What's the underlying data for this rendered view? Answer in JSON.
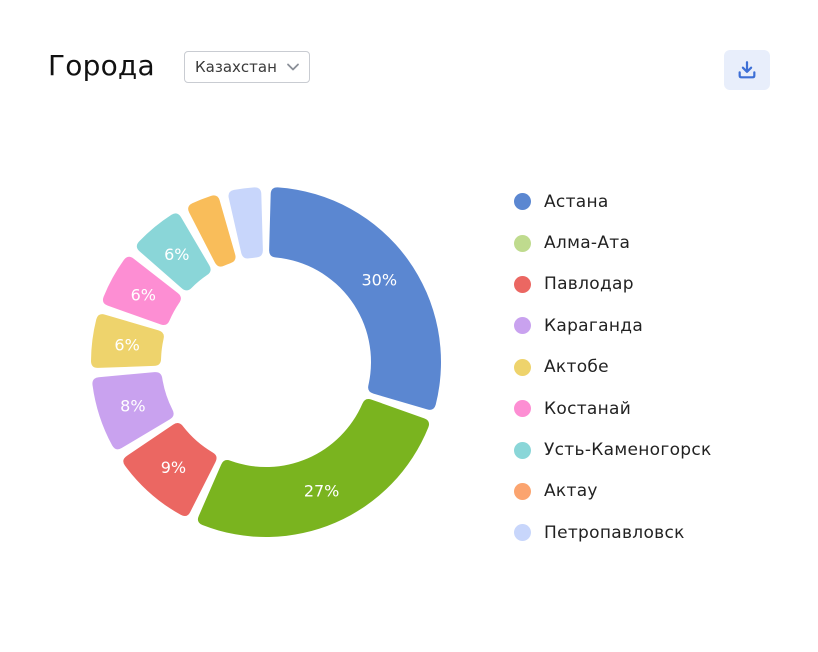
{
  "header": {
    "title": "Города",
    "country_select": {
      "value": "Казахстан"
    },
    "download_icon": "download-icon"
  },
  "chart_data": {
    "type": "pie",
    "variant": "donut",
    "title": "",
    "legend_position": "right",
    "categories": [
      "Астана",
      "Алма-Ата",
      "Павлодар",
      "Караганда",
      "Актобе",
      "Костанай",
      "Усть-Каменогорск",
      "Актау",
      "Петропавловск"
    ],
    "values": [
      30,
      27,
      9,
      8,
      6,
      6,
      6,
      4,
      4
    ],
    "labels": [
      "30%",
      "27%",
      "9%",
      "8%",
      "6%",
      "6%",
      "6%",
      "",
      ""
    ],
    "colors": [
      "#5b87d1",
      "#7ab41f",
      "#eb6762",
      "#c9a2ef",
      "#eed36c",
      "#fd8ed3",
      "#8ad6d8",
      "#f9bd5a",
      "#c8d6fb"
    ],
    "legend_colors": [
      "#5b87d1",
      "#bfdb8e",
      "#eb6762",
      "#c9a2ef",
      "#eed36c",
      "#fd8ed3",
      "#8ad6d8",
      "#fba46f",
      "#c8d6fb"
    ]
  }
}
